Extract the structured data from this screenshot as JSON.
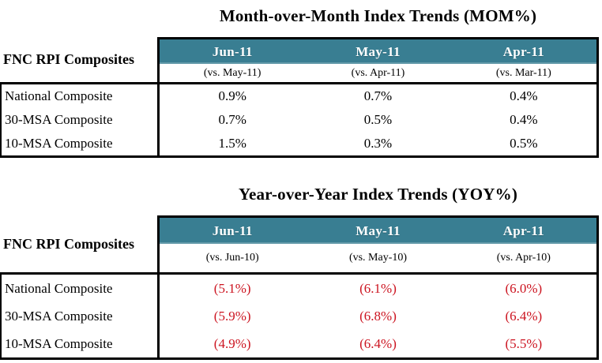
{
  "colors": {
    "header_bg": "#397e92",
    "negative_text": "#cc1420",
    "positive_text": "#000000",
    "border": "#000000",
    "page_bg": "#ffffff"
  },
  "tables": [
    {
      "title": "Month-over-Month Index Trends (MOM%)",
      "row_header": "FNC RPI Composites",
      "columns": [
        {
          "month": "Jun-11",
          "vs": "(vs. May-11)"
        },
        {
          "month": "May-11",
          "vs": "(vs. Apr-11)"
        },
        {
          "month": "Apr-11",
          "vs": "(vs. Mar-11)"
        }
      ],
      "rows": [
        {
          "label": "National Composite",
          "values": [
            "0.9%",
            "0.7%",
            "0.4%"
          ]
        },
        {
          "label": "30-MSA Composite",
          "values": [
            "0.7%",
            "0.5%",
            "0.4%"
          ]
        },
        {
          "label": "10-MSA Composite",
          "values": [
            "1.5%",
            "0.3%",
            "0.5%"
          ]
        }
      ]
    },
    {
      "title": "Year-over-Year Index Trends (YOY%)",
      "row_header": "FNC RPI Composites",
      "columns": [
        {
          "month": "Jun-11",
          "vs": "(vs. Jun-10)"
        },
        {
          "month": "May-11",
          "vs": "(vs. May-10)"
        },
        {
          "month": "Apr-11",
          "vs": "(vs. Apr-10)"
        }
      ],
      "rows": [
        {
          "label": "National Composite",
          "values": [
            "(5.1%)",
            "(6.1%)",
            "(6.0%)"
          ]
        },
        {
          "label": "30-MSA Composite",
          "values": [
            "(5.9%)",
            "(6.8%)",
            "(6.4%)"
          ]
        },
        {
          "label": "10-MSA Composite",
          "values": [
            "(4.9%)",
            "(6.4%)",
            "(5.5%)"
          ]
        }
      ]
    }
  ]
}
